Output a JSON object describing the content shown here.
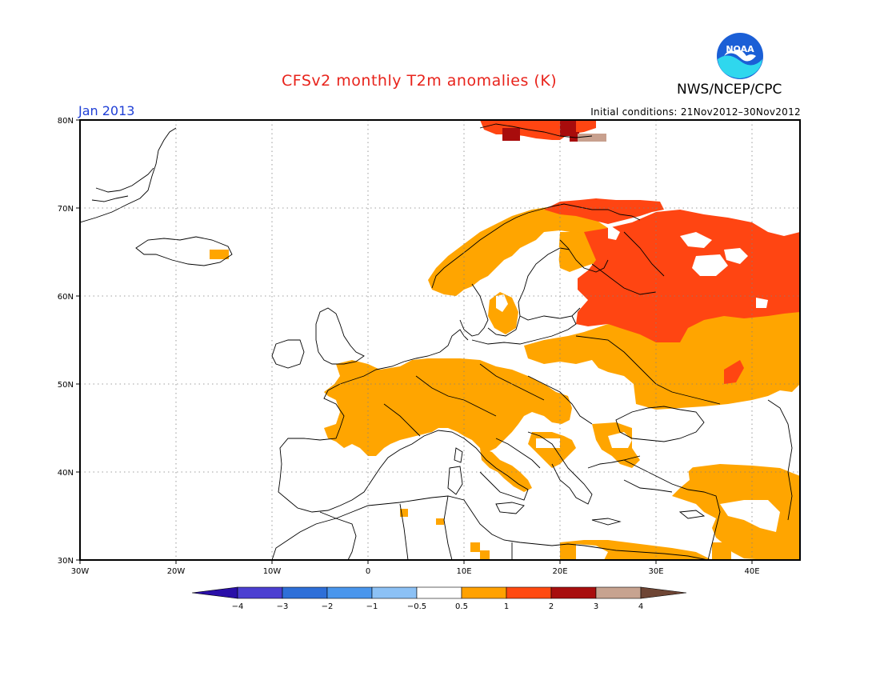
{
  "header": {
    "title": "CFSv2 monthly T2m anomalies (K)",
    "month": "Jan 2013",
    "credit": "NWS/NCEP/CPC",
    "initial_conditions": "Initial conditions: 21Nov2012–30Nov2012",
    "logo_text": "NOAA"
  },
  "map": {
    "lon_range": [
      -30,
      45
    ],
    "lat_range": [
      30,
      80
    ],
    "lat_labels": [
      "80N",
      "70N",
      "60N",
      "50N",
      "40N",
      "30N"
    ],
    "lon_labels": [
      "30W",
      "20W",
      "10W",
      "0",
      "10E",
      "20E",
      "30E",
      "40E"
    ],
    "grid": "dotted"
  },
  "colorbar": {
    "labels": [
      "−4",
      "−3",
      "−2",
      "−1",
      "−0.5",
      "0.5",
      "1",
      "2",
      "3",
      "4"
    ],
    "colors": [
      "#2a0fa8",
      "#4b3fd1",
      "#2e6fd8",
      "#4a96ec",
      "#8cc1f5",
      "#ffffff",
      "#ffa100",
      "#ff4a10",
      "#a80e0e",
      "#c7a390",
      "#6e4534"
    ]
  },
  "anomaly_colors": {
    "orange": "#ffa500",
    "red": "#ff4512",
    "darkred": "#a80c0c",
    "tan": "#c8a08e"
  }
}
